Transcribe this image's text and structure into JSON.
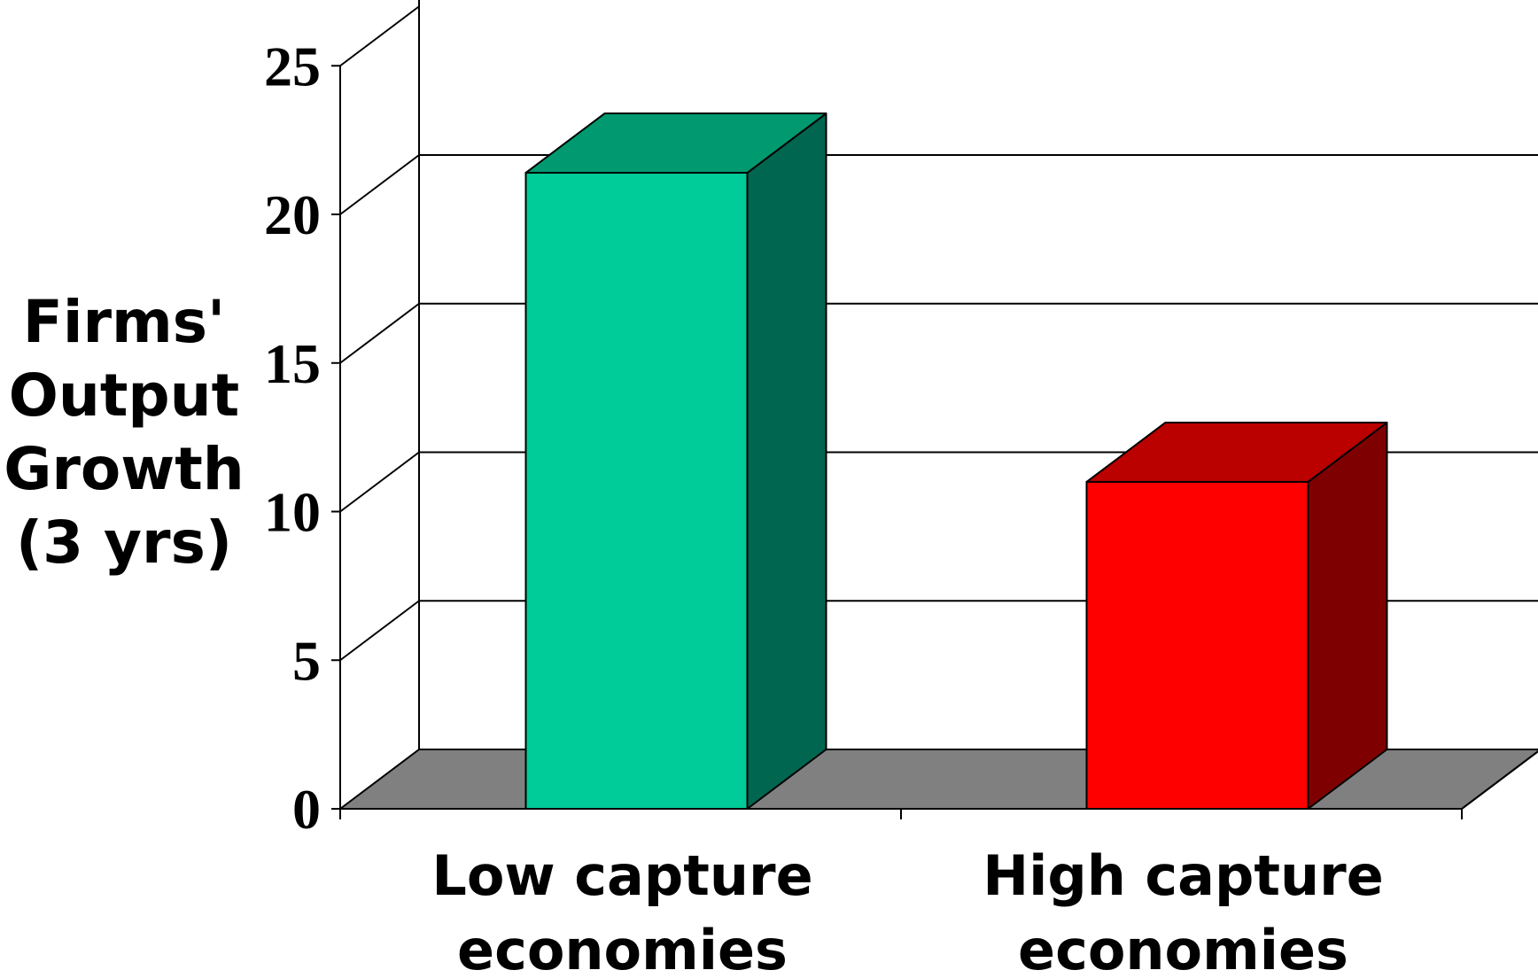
{
  "chart_data": {
    "type": "bar",
    "three_d": true,
    "categories": [
      "Low capture economies",
      "High capture economies"
    ],
    "category_label_lines": [
      [
        "Low capture",
        "economies"
      ],
      [
        "High capture",
        "economies"
      ]
    ],
    "values": [
      21.4,
      11.0
    ],
    "ylabel": "Firms' Output Growth (3 yrs)",
    "ylabel_lines": [
      "Firms'",
      "Output",
      "Growth",
      "(3 yrs)"
    ],
    "yticks": [
      "0",
      "5",
      "10",
      "15",
      "20",
      "25"
    ],
    "ylim": [
      0,
      25
    ],
    "grid": true,
    "legend": false,
    "colors": {
      "bars": [
        {
          "front": "#00CC99",
          "top": "#009970",
          "side": "#006650"
        },
        {
          "front": "#FF0000",
          "top": "#BB0000",
          "side": "#7F0000"
        }
      ],
      "floor": "#808080",
      "grid": "#000000"
    }
  }
}
